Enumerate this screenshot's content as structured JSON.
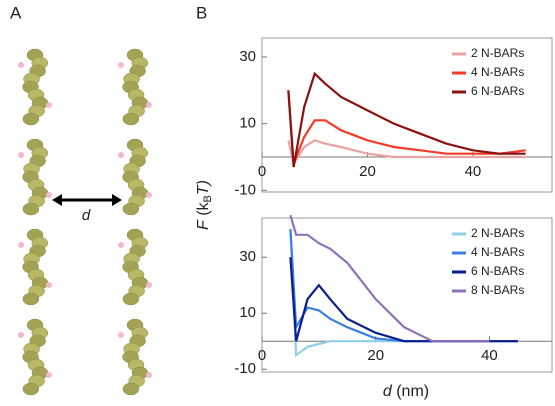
{
  "panel_labels": [
    "A",
    "B"
  ],
  "diagram_label": "d",
  "ylabel_parts": [
    "F",
    " (k",
    "B",
    "T)"
  ],
  "chart_data": [
    {
      "type": "line",
      "legend": "upper right",
      "xlim": [
        0,
        55
      ],
      "ylim": [
        -10.5,
        35.7
      ],
      "xticks": [
        0,
        20,
        40
      ],
      "yticks": [
        -10,
        10,
        30
      ],
      "x": [
        5,
        6,
        8,
        10,
        12,
        15,
        20,
        25,
        30,
        35,
        40,
        45,
        50
      ],
      "series": [
        {
          "name": "2 N-BARs",
          "color": "#e8a3a3",
          "values": [
            5,
            -2,
            3,
            5,
            4,
            3,
            1,
            0,
            0,
            0,
            0,
            0,
            0
          ]
        },
        {
          "name": "4 N-BARs",
          "color": "#f03c28",
          "values": [
            20,
            -2,
            6,
            11,
            11,
            8,
            5,
            3,
            2,
            1,
            1,
            1,
            2
          ]
        },
        {
          "name": "6 N-BARs",
          "color": "#8b1010",
          "values": [
            20,
            -3,
            15,
            25,
            22,
            18,
            14,
            10,
            7,
            4,
            2,
            1,
            1
          ]
        }
      ]
    },
    {
      "type": "line",
      "legend": "upper right",
      "xlim": [
        0,
        51
      ],
      "ylim": [
        -11,
        44
      ],
      "xticks": [
        0,
        20,
        40
      ],
      "yticks": [
        -10,
        10,
        30
      ],
      "xlabel_parts": [
        "d",
        " (nm)"
      ],
      "x": [
        5,
        6,
        8,
        10,
        12,
        15,
        20,
        25,
        30,
        35,
        40,
        45
      ],
      "series": [
        {
          "name": "2 N-BARs",
          "color": "#8fd0e8",
          "values": [
            40,
            -5,
            -2,
            -1,
            0,
            0,
            0,
            0,
            0,
            0,
            0,
            0
          ]
        },
        {
          "name": "4 N-BARs",
          "color": "#3a7fe0",
          "values": [
            40,
            5,
            12,
            11,
            8,
            5,
            1,
            0,
            0,
            0,
            0,
            0
          ]
        },
        {
          "name": "6 N-BARs",
          "color": "#0a1f8f",
          "values": [
            30,
            0,
            15,
            20,
            15,
            8,
            3,
            0,
            0,
            0,
            0,
            0
          ]
        },
        {
          "name": "8 N-BARs",
          "color": "#9070b8",
          "values": [
            45,
            38,
            38,
            35,
            33,
            28,
            15,
            5,
            0,
            0,
            0,
            null
          ]
        }
      ]
    }
  ]
}
